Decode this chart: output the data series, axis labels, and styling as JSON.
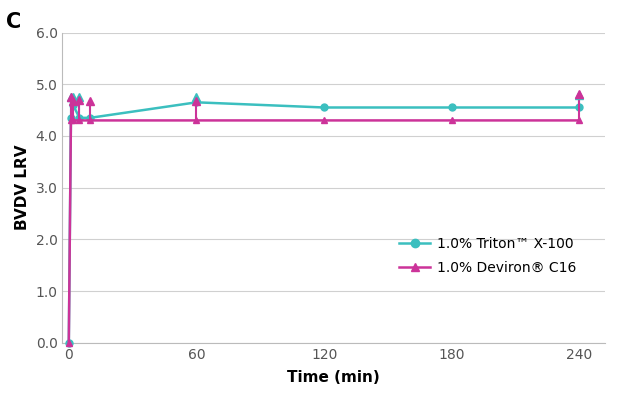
{
  "title_label": "C",
  "xlabel": "Time (min)",
  "ylabel": "BVDV LRV",
  "xlim": [
    -3,
    252
  ],
  "ylim": [
    0.0,
    6.0
  ],
  "yticks": [
    0.0,
    1.0,
    2.0,
    3.0,
    4.0,
    5.0,
    6.0
  ],
  "xticks": [
    0,
    60,
    120,
    180,
    240
  ],
  "triton_color": "#3bbfbf",
  "deviron_color": "#cc3399",
  "triton_x": [
    0,
    1,
    2,
    5,
    10,
    60,
    120,
    180,
    240
  ],
  "triton_y": [
    0.0,
    4.35,
    4.6,
    4.35,
    4.35,
    4.65,
    4.55,
    4.55,
    4.55
  ],
  "triton_upper": [
    null,
    4.75,
    4.75,
    4.75,
    null,
    4.75,
    null,
    null,
    4.8
  ],
  "deviron_x": [
    0,
    1,
    2,
    5,
    10,
    60,
    120,
    180,
    240
  ],
  "deviron_y": [
    0.0,
    4.3,
    4.3,
    4.3,
    4.3,
    4.3,
    4.3,
    4.3,
    4.3
  ],
  "deviron_upper": [
    null,
    4.75,
    4.68,
    4.7,
    4.68,
    4.68,
    null,
    null,
    4.82
  ],
  "legend_triton": "1.0% Triton™ X-100",
  "legend_deviron": "1.0% Deviron® C16",
  "bg_color": "#ffffff",
  "grid_color": "#d0d0d0"
}
